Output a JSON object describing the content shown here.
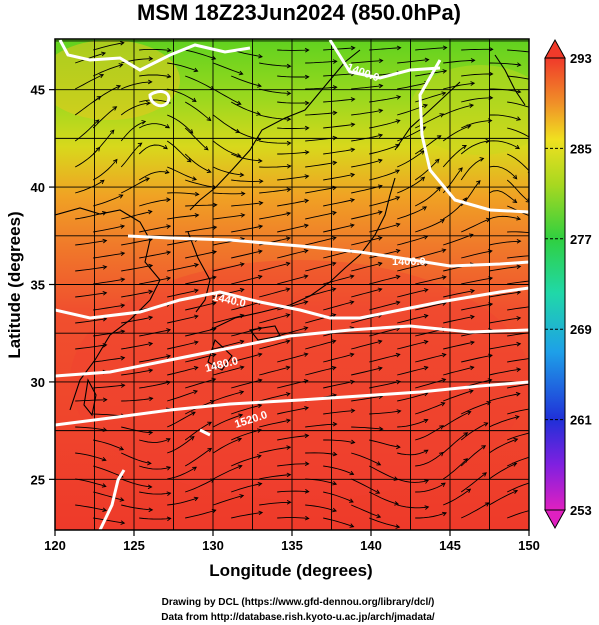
{
  "title": "MSM 18Z23Jun2024 (850.0hPa)",
  "xlabel": "Longitude (degrees)",
  "ylabel": "Latitude  (degrees)",
  "x_ticks": [
    "120",
    "125",
    "130",
    "135",
    "140",
    "145",
    "150"
  ],
  "y_ticks": [
    "25",
    "30",
    "35",
    "40",
    "45"
  ],
  "colorbar_ticks": [
    "293",
    "285",
    "277",
    "269",
    "261",
    "253"
  ],
  "contour_labels": [
    "1400.0",
    "1400.0",
    "1440.0",
    "1480.0",
    "1520.0"
  ],
  "credits": {
    "line1": "Drawing by DCL (https://www.gfd-dennou.org/library/dcl/)",
    "line2": "Data from http://database.rish.kyoto-u.ac.jp/arch/jmadata/"
  },
  "colors": {
    "warm": "#f0452e",
    "orange": "#f08a24",
    "yellow": "#e6d820",
    "green": "#7ed321",
    "contour": "#ffffff",
    "stream": "#000000",
    "coast": "#000000"
  },
  "map_extent": {
    "lon": [
      120,
      150
    ],
    "lat": [
      22.4,
      47.6
    ]
  },
  "colorbar_range": [
    253,
    293
  ]
}
